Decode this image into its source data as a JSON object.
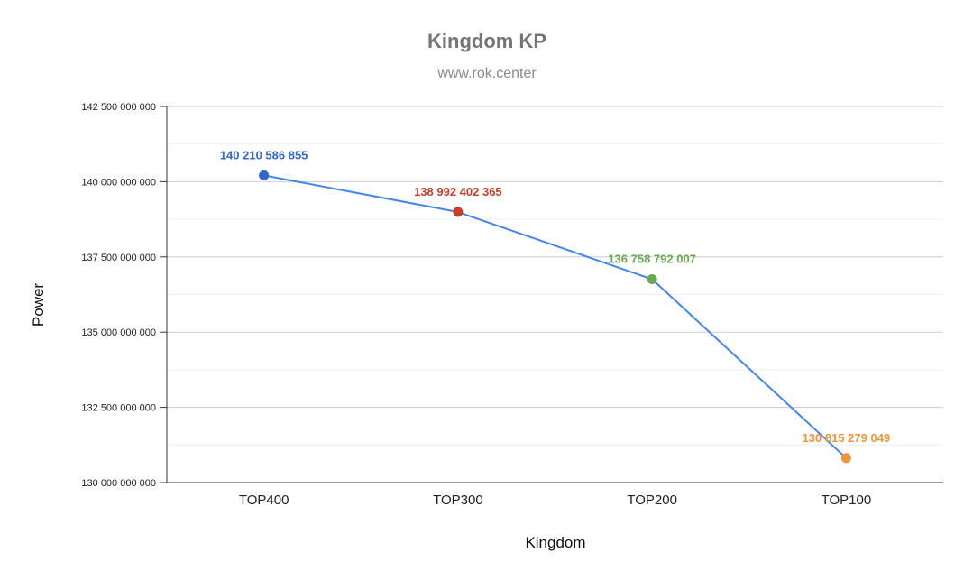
{
  "chart_data": {
    "type": "line",
    "title": "Kingdom KP",
    "subtitle": "www.rok.center",
    "xlabel": "Kingdom",
    "ylabel": "Power",
    "categories": [
      "TOP400",
      "TOP300",
      "TOP200",
      "TOP100"
    ],
    "series": [
      {
        "values": [
          140210586855,
          138992402365,
          136758792007,
          130815279049
        ],
        "data_labels": [
          "140 210 586 855",
          "138 992 402 365",
          "136 758 792 007",
          "130 815 279 049"
        ],
        "line_color": "#4285f4",
        "point_colors": [
          "#3366cc",
          "#cc3d27",
          "#6aa84f",
          "#f09438"
        ]
      }
    ],
    "ylim": [
      130000000000,
      142500000000
    ],
    "yticks": [
      130000000000,
      132500000000,
      135000000000,
      137500000000,
      140000000000,
      142500000000
    ],
    "ytick_labels": [
      "130 000 000 000",
      "132 500 000 000",
      "135 000 000 000",
      "137 500 000 000",
      "140 000 000 000",
      "142 500 000 000"
    ],
    "grid": true,
    "legend": "none"
  }
}
